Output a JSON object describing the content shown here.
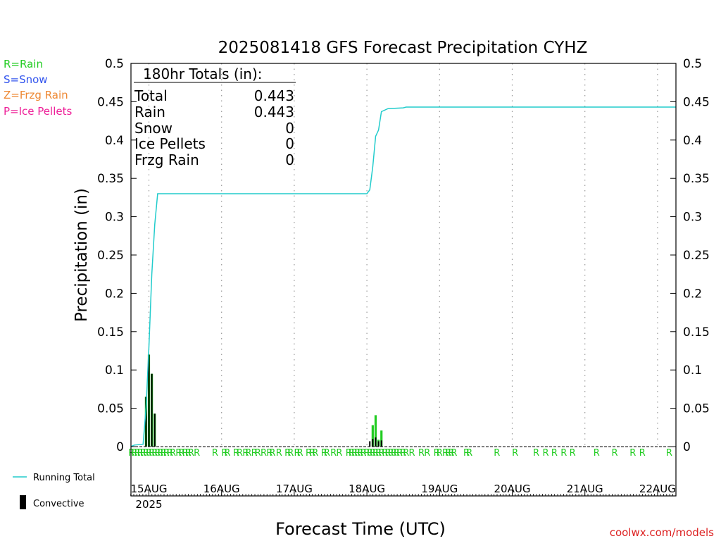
{
  "chart_data": {
    "type": "bar",
    "title": "2025081418 GFS Forecast Precipitation CYHZ",
    "xlabel": "Forecast Time (UTC)",
    "ylabel": "Precipitation (in)",
    "ylim": [
      0,
      0.5
    ],
    "yticks": [
      "0",
      "0.05",
      "0.1",
      "0.15",
      "0.2",
      "0.25",
      "0.3",
      "0.35",
      "0.4",
      "0.45",
      "0.5"
    ],
    "xticks": [
      {
        "label": "15AUG",
        "sub": "2025",
        "day": 0
      },
      {
        "label": "16AUG",
        "sub": "",
        "day": 1
      },
      {
        "label": "17AUG",
        "sub": "",
        "day": 2
      },
      {
        "label": "18AUG",
        "sub": "",
        "day": 3
      },
      {
        "label": "19AUG",
        "sub": "",
        "day": 4
      },
      {
        "label": "20AUG",
        "sub": "",
        "day": 5
      },
      {
        "label": "21AUG",
        "sub": "",
        "day": 6
      },
      {
        "label": "22AUG",
        "sub": "",
        "day": 7
      }
    ],
    "xlim_days": [
      -0.25,
      7.25
    ],
    "grid": "vertical dotted",
    "legend_types": [
      {
        "text": "R=Rain",
        "color": "#22cc22"
      },
      {
        "text": "S=Snow",
        "color": "#3355ee"
      },
      {
        "text": "Z=Frzg Rain",
        "color": "#ee8833"
      },
      {
        "text": "P=Ice Pellets",
        "color": "#ee2299"
      }
    ],
    "legend_series": [
      {
        "text": "Running Total",
        "color": "#22cccc",
        "kind": "line"
      },
      {
        "text": "Convective",
        "color": "#000000",
        "kind": "bar"
      }
    ],
    "totals": {
      "header": "180hr Totals (in):",
      "rows": [
        {
          "label": "Total",
          "value": "0.443"
        },
        {
          "label": "Rain",
          "value": "0.443"
        },
        {
          "label": "Snow",
          "value": "0"
        },
        {
          "label": "Ice Pellets",
          "value": "0"
        },
        {
          "label": "Frzg Rain",
          "value": "0"
        }
      ]
    },
    "precip_bars_green": [
      {
        "day": -0.04,
        "value": 0.065
      },
      {
        "day": 0.0,
        "value": 0.12
      },
      {
        "day": 0.04,
        "value": 0.095
      },
      {
        "day": 0.08,
        "value": 0.043
      },
      {
        "day": 3.08,
        "value": 0.028
      },
      {
        "day": 3.12,
        "value": 0.041
      },
      {
        "day": 3.16,
        "value": 0.009
      },
      {
        "day": 3.2,
        "value": 0.021
      }
    ],
    "convective_bars": [
      {
        "day": -0.04,
        "value": 0.065
      },
      {
        "day": 0.0,
        "value": 0.12
      },
      {
        "day": 0.04,
        "value": 0.095
      },
      {
        "day": 0.08,
        "value": 0.043
      },
      {
        "day": 3.04,
        "value": 0.007
      },
      {
        "day": 3.08,
        "value": 0.01
      },
      {
        "day": 3.12,
        "value": 0.012
      },
      {
        "day": 3.16,
        "value": 0.007
      },
      {
        "day": 3.2,
        "value": 0.008
      }
    ],
    "running_total": [
      {
        "day": -0.25,
        "value": 0.0
      },
      {
        "day": -0.2,
        "value": 0.002
      },
      {
        "day": -0.08,
        "value": 0.003
      },
      {
        "day": -0.04,
        "value": 0.05
      },
      {
        "day": 0.0,
        "value": 0.13
      },
      {
        "day": 0.04,
        "value": 0.225
      },
      {
        "day": 0.08,
        "value": 0.29
      },
      {
        "day": 0.12,
        "value": 0.33
      },
      {
        "day": 3.0,
        "value": 0.33
      },
      {
        "day": 3.04,
        "value": 0.335
      },
      {
        "day": 3.08,
        "value": 0.365
      },
      {
        "day": 3.12,
        "value": 0.405
      },
      {
        "day": 3.16,
        "value": 0.413
      },
      {
        "day": 3.2,
        "value": 0.437
      },
      {
        "day": 3.29,
        "value": 0.441
      },
      {
        "day": 3.5,
        "value": 0.442
      },
      {
        "day": 3.54,
        "value": 0.443
      },
      {
        "day": 7.25,
        "value": 0.443
      }
    ],
    "precip_type_marks": {
      "letter": "R",
      "days": [
        -0.24,
        -0.2,
        -0.16,
        -0.12,
        -0.08,
        -0.04,
        0.0,
        0.04,
        0.08,
        0.12,
        0.16,
        0.2,
        0.24,
        0.29,
        0.33,
        0.41,
        0.45,
        0.5,
        0.54,
        0.58,
        0.66,
        0.91,
        1.04,
        1.08,
        1.2,
        1.25,
        1.33,
        1.37,
        1.45,
        1.5,
        1.58,
        1.66,
        1.7,
        1.79,
        1.91,
        1.95,
        2.04,
        2.08,
        2.2,
        2.25,
        2.29,
        2.41,
        2.45,
        2.54,
        2.62,
        2.75,
        2.79,
        2.83,
        2.87,
        2.91,
        2.95,
        3.0,
        3.04,
        3.08,
        3.12,
        3.16,
        3.2,
        3.25,
        3.29,
        3.33,
        3.37,
        3.41,
        3.45,
        3.5,
        3.54,
        3.62,
        3.75,
        3.83,
        3.96,
        4.0,
        4.08,
        4.12,
        4.16,
        4.2,
        4.37,
        4.41,
        4.79,
        5.04,
        5.33,
        5.46,
        5.58,
        5.71,
        5.83,
        6.16,
        6.41,
        6.66,
        6.79,
        7.16
      ]
    },
    "credit": "coolwx.com/models"
  },
  "colors": {
    "rain": "#22cc22",
    "running_total": "#22cccc",
    "convective": "#000000",
    "credit": "#dd2222"
  }
}
